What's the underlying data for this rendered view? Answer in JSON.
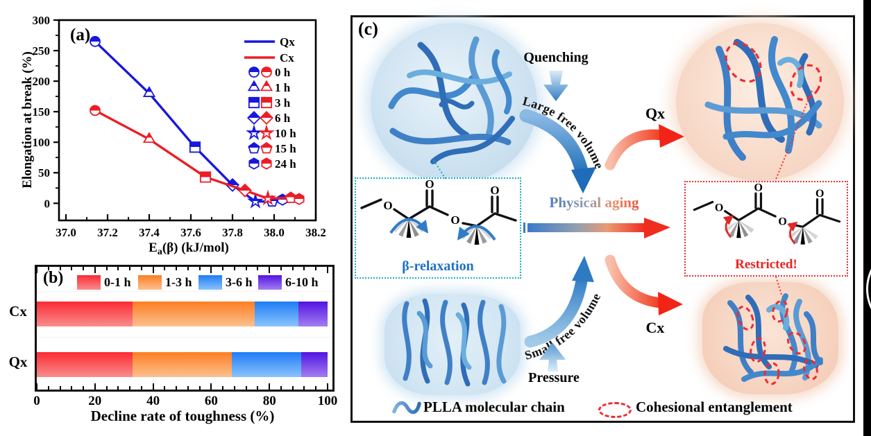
{
  "figure": {
    "panel_a_label": "(a)",
    "panel_b_label": "(b)",
    "panel_c_label": "(c)"
  },
  "chart_data": [
    {
      "id": "panel_a",
      "type": "line",
      "xlabel": "Ea(β) (kJ/mol)",
      "xlabel_main": "E",
      "xlabel_sub": "a",
      "xlabel_rest": "(β) (kJ/mol)",
      "ylabel": "Elongation at break (%)",
      "xlim": [
        36.97,
        38.2
      ],
      "ylim": [
        -28,
        300
      ],
      "xticks": [
        37.0,
        37.2,
        37.4,
        37.6,
        37.8,
        38.0,
        38.2
      ],
      "xminors": [
        37.1,
        37.3,
        37.5,
        37.7,
        37.9,
        38.1
      ],
      "yticks": [
        0,
        50,
        100,
        150,
        200,
        250,
        300
      ],
      "yminors": [
        25,
        75,
        125,
        175,
        225,
        275
      ],
      "grid": false,
      "legend_position": "upper right",
      "legend_lines": [
        {
          "name": "Qx",
          "color": "#1717dd"
        },
        {
          "name": "Cx",
          "color": "#ee1c24"
        }
      ],
      "legend_markers": [
        {
          "label": "0 h",
          "marker": "circle"
        },
        {
          "label": "1 h",
          "marker": "triangle"
        },
        {
          "label": "3 h",
          "marker": "square"
        },
        {
          "label": "6 h",
          "marker": "diamond"
        },
        {
          "label": "10 h",
          "marker": "star"
        },
        {
          "label": "15 h",
          "marker": "pentagon"
        },
        {
          "label": "24 h",
          "marker": "hexagon"
        }
      ],
      "series": [
        {
          "name": "Qx",
          "color": "#1717dd",
          "points": [
            {
              "x": 37.14,
              "y": 265,
              "marker": "circle",
              "aging_time": "0 h"
            },
            {
              "x": 37.4,
              "y": 180,
              "marker": "triangle",
              "aging_time": "1 h"
            },
            {
              "x": 37.62,
              "y": 92,
              "marker": "square",
              "aging_time": "3 h"
            },
            {
              "x": 37.8,
              "y": 30,
              "marker": "diamond",
              "aging_time": "6 h"
            },
            {
              "x": 37.91,
              "y": 3,
              "marker": "star",
              "aging_time": "10 h"
            },
            {
              "x": 37.99,
              "y": 3,
              "marker": "pentagon",
              "aging_time": "15 h"
            },
            {
              "x": 38.04,
              "y": 6,
              "marker": "hexagon",
              "aging_time": "24 h"
            }
          ]
        },
        {
          "name": "Cx",
          "color": "#ee1c24",
          "points": [
            {
              "x": 37.14,
              "y": 152,
              "marker": "circle",
              "aging_time": "0 h"
            },
            {
              "x": 37.4,
              "y": 105,
              "marker": "triangle",
              "aging_time": "1 h"
            },
            {
              "x": 37.67,
              "y": 43,
              "marker": "square",
              "aging_time": "3 h"
            },
            {
              "x": 37.86,
              "y": 21,
              "marker": "diamond",
              "aging_time": "6 h"
            },
            {
              "x": 37.97,
              "y": 8,
              "marker": "star",
              "aging_time": "10 h"
            },
            {
              "x": 38.08,
              "y": 9,
              "marker": "pentagon",
              "aging_time": "15 h"
            },
            {
              "x": 38.12,
              "y": 7,
              "marker": "hexagon",
              "aging_time": "24 h"
            }
          ]
        }
      ]
    },
    {
      "id": "panel_b",
      "type": "bar",
      "orientation": "horizontal",
      "stacked": true,
      "categories": [
        "Cx",
        "Qx"
      ],
      "xlabel": "Decline rate of toughness (%)",
      "xlim": [
        0,
        100
      ],
      "xticks": [
        0,
        20,
        40,
        60,
        80,
        100
      ],
      "series": [
        {
          "name": "0-1 h",
          "values": [
            33,
            33
          ],
          "color_top": "#fb2a33",
          "color_bottom": "#fa8d8d"
        },
        {
          "name": "1-3 h",
          "values": [
            42,
            34
          ],
          "color_top": "#fd7e22",
          "color_bottom": "#fcc090"
        },
        {
          "name": "3-6 h",
          "values": [
            15,
            24
          ],
          "color_top": "#1f7cf7",
          "color_bottom": "#8ac4fb"
        },
        {
          "name": "6-10 h",
          "values": [
            10,
            9
          ],
          "color_top": "#5214e2",
          "color_bottom": "#a37ef0"
        }
      ]
    }
  ],
  "panel_c": {
    "label": "(c)",
    "quenching": "Quenching",
    "large_free_volume": "Large free volume",
    "small_free_volume": "Small free volume",
    "pressure": "Pressure",
    "physical_aging": "Physical aging",
    "qx": "Qx",
    "cx": "Cx",
    "beta_relaxation": "β-relaxation",
    "restricted": "Restricted!",
    "atom_o": "O",
    "legend": {
      "plla": "PLLA molecular chain",
      "cohesional": "Cohesional entanglement"
    },
    "colors": {
      "chain_blue": "#3f7fc6",
      "highlight_red": "#ee2b31",
      "teal_box": "#17aec6",
      "aging_gradient_start": "#3b72c0",
      "aging_gradient_end": "#ee3524"
    }
  }
}
